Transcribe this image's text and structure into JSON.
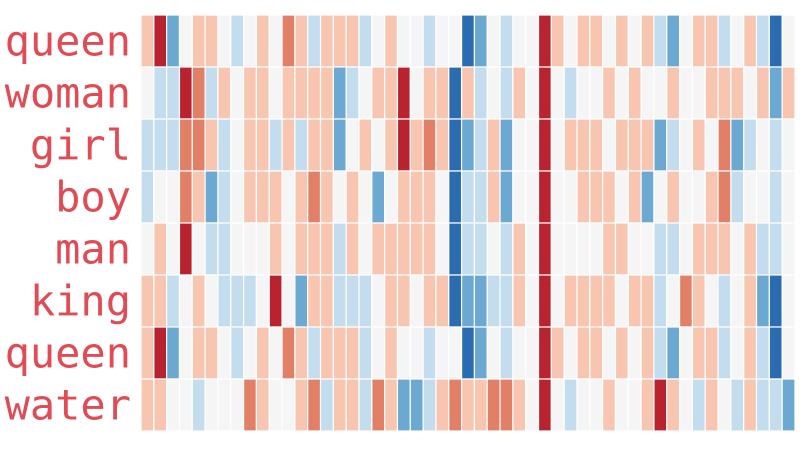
{
  "chart_data": {
    "type": "heatmap",
    "title": "",
    "xlabel": "",
    "ylabel": "",
    "legend": "none",
    "grid": false,
    "rows": [
      "queen",
      "woman",
      "girl",
      "boy",
      "man",
      "king",
      "queen",
      "water"
    ],
    "colorscale": {
      "-3": "#2b6cb0",
      "-2": "#6ba9d3",
      "-1": "#c3dcee",
      "0": "#f5f5f5",
      "1": "#f8c6b0",
      "2": "#e27f67",
      "3": "#b8232f"
    },
    "values": [
      [
        1,
        3,
        -2,
        0,
        1,
        1,
        0,
        -1,
        0,
        1,
        0,
        2,
        1,
        -1,
        1,
        1,
        1,
        -1,
        0,
        1,
        0,
        0,
        -1,
        0,
        0,
        -3,
        -2,
        0,
        -1,
        0,
        0,
        3,
        1,
        0,
        1,
        1,
        0,
        1,
        0,
        1,
        -1,
        -2,
        0,
        1,
        1,
        -1,
        0,
        1,
        -1,
        -3,
        0
      ],
      [
        0,
        -1,
        -1,
        3,
        2,
        -1,
        1,
        0,
        1,
        1,
        0,
        1,
        1,
        1,
        1,
        -2,
        -1,
        0,
        1,
        1,
        3,
        0,
        1,
        1,
        -3,
        1,
        -1,
        0,
        -1,
        1,
        0,
        3,
        0,
        -1,
        0,
        0,
        1,
        0,
        1,
        0,
        0,
        1,
        0,
        0,
        1,
        1,
        1,
        0,
        1,
        -2,
        1
      ],
      [
        -1,
        -1,
        -1,
        2,
        2,
        1,
        -1,
        0,
        1,
        1,
        -1,
        1,
        -1,
        1,
        1,
        -2,
        0,
        1,
        0,
        1,
        3,
        1,
        2,
        1,
        -3,
        -2,
        -1,
        1,
        -2,
        0,
        0,
        3,
        0,
        1,
        1,
        1,
        0,
        1,
        1,
        1,
        -2,
        -1,
        0,
        1,
        0,
        2,
        -2,
        -1,
        0,
        -1,
        0
      ],
      [
        -1,
        0,
        0,
        2,
        1,
        -2,
        -1,
        0,
        1,
        1,
        1,
        0,
        1,
        2,
        1,
        0,
        1,
        0,
        -2,
        0,
        1,
        1,
        1,
        0,
        -3,
        -1,
        -1,
        1,
        -2,
        0,
        0,
        3,
        0,
        0,
        1,
        1,
        1,
        0,
        1,
        -2,
        0,
        1,
        0,
        0,
        1,
        2,
        -1,
        0,
        0,
        -1,
        0
      ],
      [
        0,
        1,
        0,
        3,
        0,
        -1,
        -1,
        0,
        0,
        0,
        1,
        0,
        1,
        1,
        1,
        -1,
        1,
        0,
        1,
        1,
        1,
        1,
        1,
        0,
        -3,
        -1,
        -1,
        0,
        -1,
        1,
        0,
        3,
        0,
        0,
        0,
        0,
        1,
        1,
        0,
        0,
        -1,
        -1,
        0,
        1,
        1,
        1,
        0,
        1,
        -1,
        -1,
        0
      ],
      [
        1,
        1,
        -1,
        0,
        1,
        0,
        -1,
        -1,
        -1,
        0,
        3,
        0,
        -2,
        1,
        1,
        -1,
        -1,
        -1,
        0,
        1,
        1,
        0,
        1,
        1,
        -3,
        -2,
        -2,
        -1,
        -1,
        1,
        0,
        3,
        0,
        1,
        1,
        1,
        1,
        0,
        1,
        1,
        -1,
        0,
        2,
        1,
        0,
        -1,
        0,
        1,
        -2,
        -3,
        0
      ],
      [
        1,
        3,
        -2,
        0,
        1,
        1,
        0,
        -1,
        0,
        1,
        0,
        2,
        1,
        -1,
        1,
        1,
        1,
        -1,
        0,
        1,
        0,
        0,
        -1,
        0,
        0,
        -3,
        -2,
        0,
        -1,
        0,
        0,
        3,
        1,
        0,
        1,
        1,
        0,
        1,
        0,
        1,
        -1,
        -2,
        0,
        1,
        1,
        -1,
        0,
        1,
        -1,
        -3,
        0
      ],
      [
        1,
        1,
        0,
        0,
        -1,
        0,
        0,
        0,
        2,
        1,
        0,
        0,
        1,
        2,
        -1,
        1,
        1,
        -1,
        2,
        1,
        -2,
        -2,
        -1,
        1,
        2,
        1,
        1,
        2,
        2,
        1,
        0,
        3,
        0,
        -1,
        0,
        0,
        1,
        0,
        0,
        1,
        3,
        1,
        0,
        -1,
        1,
        0,
        -1,
        1,
        -1,
        -1,
        -2
      ]
    ]
  }
}
